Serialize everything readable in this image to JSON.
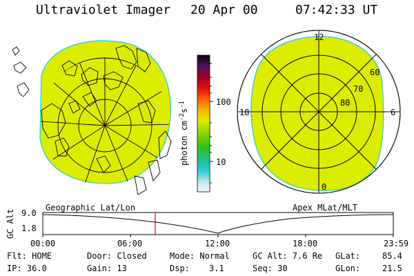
{
  "header": {
    "title": "Ultraviolet Imager",
    "date": "20 Apr 00",
    "time": "07:42:33 UT"
  },
  "colorbar": {
    "label": "photon cm",
    "unit_sup1": "-2",
    "unit_mid": "s",
    "unit_sup2": "-1",
    "ticks": [
      "100",
      "10"
    ],
    "fill_color": "#dcec00"
  },
  "polar_plot": {
    "mlt_labels": {
      "top": "12",
      "left": "18",
      "right": "6",
      "bottom": "0"
    },
    "lat_labels": [
      "60",
      "70",
      "80"
    ]
  },
  "timeline": {
    "left_title": "Geographic Lat/Lon",
    "right_title": "Apex MLat/MLT",
    "ylabel": "GC Alt",
    "y_ticks": [
      "9.0",
      "1.8"
    ],
    "x_ticks": [
      "00:00",
      "06:00",
      "12:00",
      "18:00",
      "23:59"
    ],
    "current_time_marker_color": "#e00000"
  },
  "status": {
    "flt": "Flt: HOME",
    "ip": "IP: 36.0",
    "door": "Door: Closed",
    "gain": "Gain: 13",
    "mode": "Mode: Normal",
    "dsp_label": "Dsp:",
    "dsp_value": "3.1",
    "gc_alt": "GC Alt: 7.6 Re",
    "seq": "Seq: 30",
    "glat_label": "GLat:",
    "glat_value": "85.4",
    "glon_label": "GLon:",
    "glon_value": "21.5"
  }
}
